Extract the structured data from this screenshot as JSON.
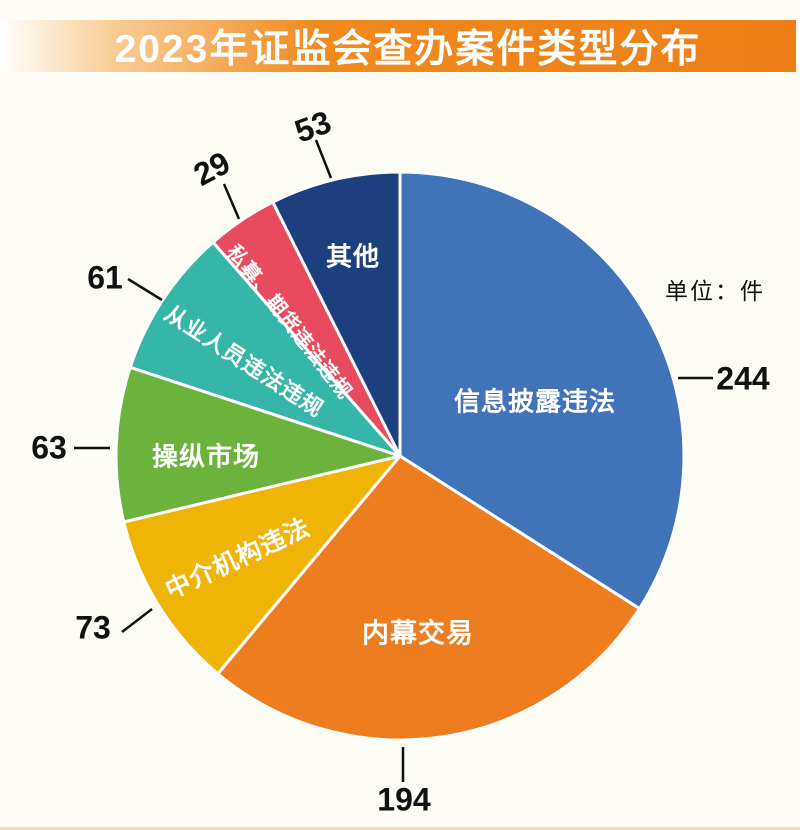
{
  "header": {
    "title": "2023年证监会查办案件类型分布"
  },
  "unit_note": "单位：件",
  "chart_data": {
    "type": "pie",
    "title": "2023年证监会查办案件类型分布",
    "unit": "件",
    "start_angle_deg": 0,
    "direction": "clockwise",
    "legend_position": "none",
    "slices": [
      {
        "label": "信息披露违法",
        "value": 244,
        "color": "#4173B8"
      },
      {
        "label": "内幕交易",
        "value": 194,
        "color": "#EE7D1F"
      },
      {
        "label": "中介机构违法",
        "value": 73,
        "color": "#F0B406"
      },
      {
        "label": "操纵市场",
        "value": 63,
        "color": "#6CB33E"
      },
      {
        "label": "从业人员违法违规",
        "value": 61,
        "color": "#36B5A9"
      },
      {
        "label": "私募、期货违法违规",
        "value": 29,
        "color": "#E84A5F"
      },
      {
        "label": "其他",
        "value": 53,
        "color": "#1E3F7E"
      }
    ]
  },
  "colors": {
    "banner_orange": "#EE7E15",
    "background": "#FDFDF6",
    "slice_border": "#FFFFFF",
    "callout_text": "#111111",
    "footer_line": "#F3DCBA"
  }
}
